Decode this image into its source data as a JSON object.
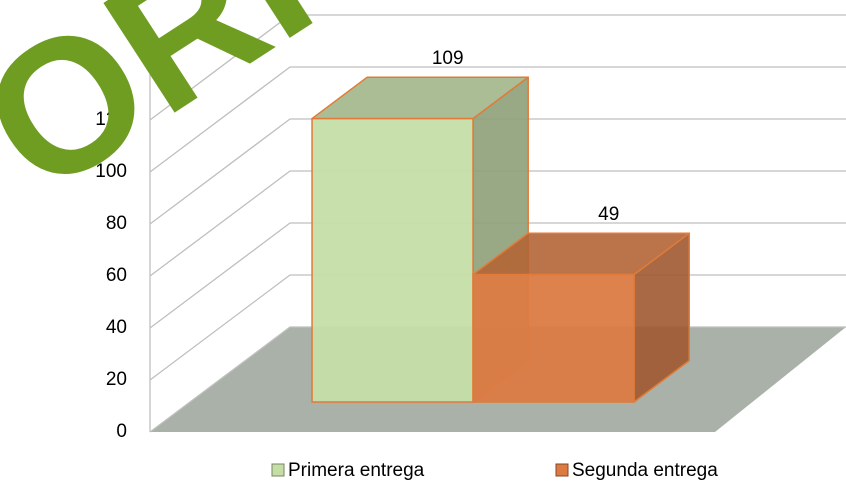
{
  "watermark": "ORIGINAL",
  "chart_data": {
    "type": "bar3d",
    "series": [
      {
        "name": "Primera entrega",
        "color": "#c5dea6",
        "values": [
          109
        ]
      },
      {
        "name": "Segunda entrega",
        "color": "#db7b42",
        "values": [
          49
        ]
      }
    ],
    "ylim": [
      0,
      140
    ],
    "yticks": [
      0,
      20,
      40,
      60,
      80,
      100,
      120
    ],
    "grid": true,
    "legend": "bottom"
  }
}
